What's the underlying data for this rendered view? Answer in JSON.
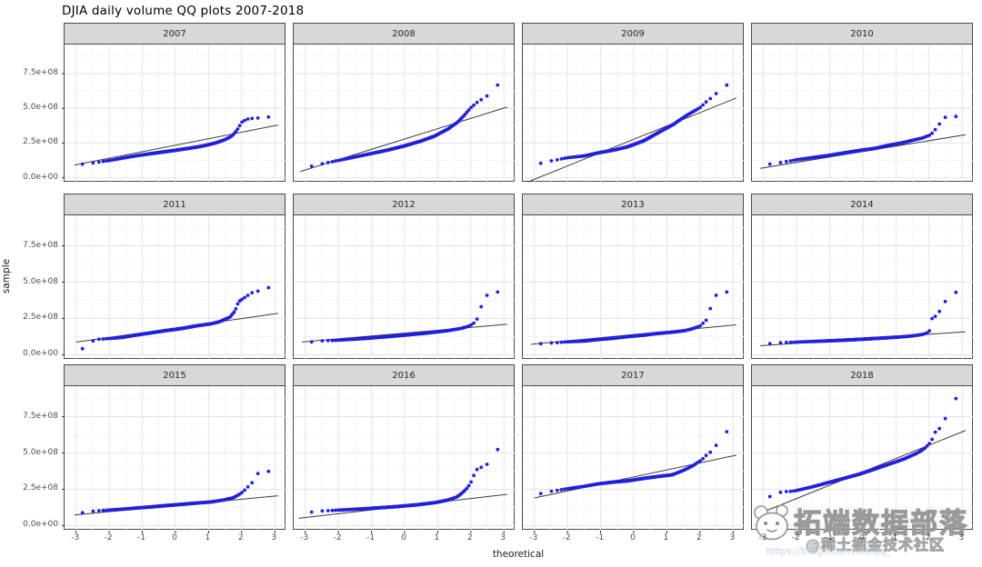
{
  "figure": {
    "title": "DJIA daily volume QQ plots 2007-2018",
    "xlabel": "theoretical",
    "ylabel": "sample"
  },
  "axes": {
    "y_ticks": [
      {
        "label": "0.0e+00",
        "value_e8": 0
      },
      {
        "label": "2.5e+08",
        "value_e8": 2.5
      },
      {
        "label": "5.0e+08",
        "value_e8": 5.0
      },
      {
        "label": "7.5e+08",
        "value_e8": 7.5
      }
    ],
    "x_ticks": [
      {
        "label": "-3",
        "value": -3
      },
      {
        "label": "-2",
        "value": -2
      },
      {
        "label": "-1",
        "value": -1
      },
      {
        "label": "0",
        "value": 0
      },
      {
        "label": "1",
        "value": 1
      },
      {
        "label": "2",
        "value": 2
      },
      {
        "label": "3",
        "value": 3
      }
    ],
    "x_domain": [
      -3.35,
      3.35
    ],
    "y_domain_e8": [
      -0.35,
      9.6
    ],
    "grid": true,
    "x_minor_step": 0.5,
    "y_minor_e8": [
      1.25,
      3.75,
      6.25,
      8.75
    ]
  },
  "colors": {
    "point": "#2121dd",
    "ref_line": "#3c3c3c",
    "strip_bg": "#d8d8d8",
    "panel_border": "#4a4a4a",
    "grid_major": "#e4e4e4",
    "grid_minor": "#f2f2f2",
    "axis_text": "#4d4d4d"
  },
  "chart_data": {
    "type": "scatter",
    "subtype": "qq-plot-facet-grid",
    "facet_layout": {
      "rows": 3,
      "cols": 4
    },
    "title": "DJIA daily volume QQ plots 2007-2018",
    "xlabel": "theoretical",
    "ylabel": "sample",
    "y_unit": "1e8 shares",
    "facets": [
      {
        "year": "2007",
        "qq_curve_e8": [
          [
            -3.05,
            0.9
          ],
          [
            -2.7,
            1.02
          ],
          [
            -2.4,
            1.08
          ],
          [
            -2.2,
            1.18
          ],
          [
            -1.9,
            1.28
          ],
          [
            -1.6,
            1.42
          ],
          [
            -1.2,
            1.58
          ],
          [
            -0.8,
            1.72
          ],
          [
            -0.4,
            1.85
          ],
          [
            0.0,
            1.98
          ],
          [
            0.4,
            2.12
          ],
          [
            0.8,
            2.28
          ],
          [
            1.2,
            2.5
          ],
          [
            1.5,
            2.75
          ],
          [
            1.7,
            3.0
          ],
          [
            1.85,
            3.4
          ],
          [
            2.0,
            4.0
          ],
          [
            2.15,
            4.22
          ],
          [
            2.4,
            4.3
          ],
          [
            2.7,
            4.32
          ],
          [
            3.05,
            4.5
          ]
        ],
        "ref_line_e8": [
          -3.05,
          0.92,
          3.1,
          3.8
        ]
      },
      {
        "year": "2008",
        "qq_curve_e8": [
          [
            -3.05,
            0.7
          ],
          [
            -2.7,
            0.9
          ],
          [
            -2.3,
            1.1
          ],
          [
            -1.9,
            1.3
          ],
          [
            -1.5,
            1.5
          ],
          [
            -1.0,
            1.75
          ],
          [
            -0.5,
            2.0
          ],
          [
            0.0,
            2.3
          ],
          [
            0.5,
            2.65
          ],
          [
            0.9,
            3.0
          ],
          [
            1.3,
            3.5
          ],
          [
            1.6,
            4.0
          ],
          [
            1.8,
            4.5
          ],
          [
            2.0,
            5.05
          ],
          [
            2.2,
            5.45
          ],
          [
            2.4,
            5.75
          ],
          [
            2.55,
            6.0
          ],
          [
            2.75,
            6.65
          ],
          [
            3.05,
            6.8
          ]
        ],
        "ref_line_e8": [
          -3.15,
          0.45,
          3.1,
          5.1
        ]
      },
      {
        "year": "2009",
        "qq_curve_e8": [
          [
            -3.05,
            0.7
          ],
          [
            -2.75,
            1.13
          ],
          [
            -2.4,
            1.25
          ],
          [
            -2.0,
            1.45
          ],
          [
            -1.5,
            1.57
          ],
          [
            -1.1,
            1.78
          ],
          [
            -0.6,
            2.0
          ],
          [
            -0.2,
            2.22
          ],
          [
            0.3,
            2.66
          ],
          [
            0.7,
            3.2
          ],
          [
            1.2,
            3.85
          ],
          [
            1.6,
            4.5
          ],
          [
            2.0,
            5.05
          ],
          [
            2.25,
            5.6
          ],
          [
            2.45,
            5.95
          ],
          [
            2.65,
            6.58
          ],
          [
            2.9,
            6.73
          ],
          [
            3.05,
            6.85
          ]
        ],
        "ref_line_e8": [
          -3.2,
          -0.3,
          3.1,
          5.75
        ]
      },
      {
        "year": "2010",
        "qq_curve_e8": [
          [
            -3.05,
            0.91
          ],
          [
            -2.7,
            1.02
          ],
          [
            -2.4,
            1.13
          ],
          [
            -2.0,
            1.3
          ],
          [
            -1.5,
            1.46
          ],
          [
            -1.0,
            1.62
          ],
          [
            -0.6,
            1.78
          ],
          [
            0.0,
            2.0
          ],
          [
            0.35,
            2.11
          ],
          [
            0.8,
            2.35
          ],
          [
            1.25,
            2.55
          ],
          [
            1.8,
            2.87
          ],
          [
            2.05,
            3.1
          ],
          [
            2.2,
            3.5
          ],
          [
            2.35,
            4.0
          ],
          [
            2.45,
            4.35
          ],
          [
            2.8,
            4.4
          ],
          [
            3.05,
            4.8
          ]
        ],
        "ref_line_e8": [
          -3.1,
          0.68,
          3.1,
          3.1
        ]
      },
      {
        "year": "2011",
        "qq_curve_e8": [
          [
            -3.05,
            0.31
          ],
          [
            -2.7,
            0.46
          ],
          [
            -2.45,
            1.04
          ],
          [
            -2.1,
            1.1
          ],
          [
            -1.6,
            1.19
          ],
          [
            -1.2,
            1.35
          ],
          [
            -0.7,
            1.52
          ],
          [
            -0.3,
            1.66
          ],
          [
            0.2,
            1.81
          ],
          [
            0.6,
            1.98
          ],
          [
            1.1,
            2.14
          ],
          [
            1.35,
            2.29
          ],
          [
            1.65,
            2.6
          ],
          [
            1.8,
            3.02
          ],
          [
            1.9,
            3.64
          ],
          [
            2.1,
            3.96
          ],
          [
            2.3,
            4.27
          ],
          [
            2.45,
            4.37
          ],
          [
            2.7,
            4.44
          ],
          [
            3.05,
            5.0
          ]
        ],
        "ref_line_e8": [
          -3.0,
          0.87,
          3.1,
          2.85
        ]
      },
      {
        "year": "2012",
        "qq_curve_e8": [
          [
            -3.05,
            0.79
          ],
          [
            -2.65,
            0.94
          ],
          [
            -2.0,
            1.0
          ],
          [
            -1.1,
            1.14
          ],
          [
            -0.2,
            1.31
          ],
          [
            0.7,
            1.5
          ],
          [
            1.3,
            1.66
          ],
          [
            1.7,
            1.81
          ],
          [
            1.95,
            1.98
          ],
          [
            2.1,
            2.19
          ],
          [
            2.2,
            2.5
          ],
          [
            2.4,
            3.96
          ],
          [
            2.6,
            4.27
          ],
          [
            3.05,
            4.37
          ]
        ],
        "ref_line_e8": [
          -3.1,
          0.88,
          3.1,
          2.1
        ]
      },
      {
        "year": "2013",
        "qq_curve_e8": [
          [
            -3.05,
            0.56
          ],
          [
            -2.78,
            0.79
          ],
          [
            -2.4,
            0.82
          ],
          [
            -2.0,
            0.89
          ],
          [
            -1.5,
            0.94
          ],
          [
            -1.1,
            1.04
          ],
          [
            -0.6,
            1.14
          ],
          [
            -0.2,
            1.25
          ],
          [
            0.3,
            1.35
          ],
          [
            0.7,
            1.46
          ],
          [
            1.2,
            1.56
          ],
          [
            1.55,
            1.66
          ],
          [
            1.8,
            1.81
          ],
          [
            2.0,
            1.98
          ],
          [
            2.1,
            2.19
          ],
          [
            2.2,
            2.4
          ],
          [
            2.25,
            2.71
          ],
          [
            2.4,
            3.85
          ],
          [
            2.55,
            4.27
          ],
          [
            3.05,
            4.37
          ]
        ],
        "ref_line_e8": [
          -3.1,
          0.72,
          3.1,
          2.06
        ]
      },
      {
        "year": "2014",
        "qq_curve_e8": [
          [
            -3.05,
            0.7
          ],
          [
            -2.7,
            0.8
          ],
          [
            -2.3,
            0.85
          ],
          [
            -1.8,
            0.89
          ],
          [
            -1.2,
            0.94
          ],
          [
            -0.6,
            1.0
          ],
          [
            0.0,
            1.07
          ],
          [
            0.6,
            1.15
          ],
          [
            1.1,
            1.22
          ],
          [
            1.5,
            1.3
          ],
          [
            1.8,
            1.4
          ],
          [
            2.0,
            1.55
          ],
          [
            2.1,
            2.6
          ],
          [
            2.25,
            2.68
          ],
          [
            2.45,
            3.65
          ],
          [
            2.6,
            3.7
          ],
          [
            2.75,
            3.72
          ],
          [
            3.05,
            6.6
          ]
        ],
        "ref_line_e8": [
          -3.1,
          0.62,
          3.1,
          1.58
        ]
      },
      {
        "year": "2015",
        "qq_curve_e8": [
          [
            -3.03,
            0.8
          ],
          [
            -2.53,
            0.99
          ],
          [
            -2.08,
            1.06
          ],
          [
            -1.63,
            1.12
          ],
          [
            -1.17,
            1.21
          ],
          [
            -0.72,
            1.29
          ],
          [
            -0.27,
            1.38
          ],
          [
            0.18,
            1.46
          ],
          [
            0.64,
            1.55
          ],
          [
            1.09,
            1.63
          ],
          [
            1.45,
            1.76
          ],
          [
            1.73,
            1.91
          ],
          [
            1.91,
            2.12
          ],
          [
            2.04,
            2.33
          ],
          [
            2.18,
            2.65
          ],
          [
            2.32,
            2.97
          ],
          [
            2.49,
            3.6
          ],
          [
            2.68,
            3.67
          ],
          [
            3.01,
            3.82
          ]
        ],
        "ref_line_e8": [
          -3.05,
          0.73,
          3.1,
          2.05
        ]
      },
      {
        "year": "2016",
        "qq_curve_e8": [
          [
            -3.05,
            0.85
          ],
          [
            -2.65,
            0.99
          ],
          [
            -2.02,
            1.06
          ],
          [
            -1.12,
            1.17
          ],
          [
            -0.22,
            1.31
          ],
          [
            0.41,
            1.44
          ],
          [
            0.95,
            1.59
          ],
          [
            1.31,
            1.76
          ],
          [
            1.58,
            1.97
          ],
          [
            1.76,
            2.29
          ],
          [
            1.9,
            2.61
          ],
          [
            2.03,
            3.08
          ],
          [
            2.15,
            3.82
          ],
          [
            2.3,
            4.0
          ],
          [
            2.45,
            4.14
          ],
          [
            2.6,
            4.46
          ],
          [
            3.0,
            5.94
          ]
        ],
        "ref_line_e8": [
          -3.2,
          0.5,
          3.1,
          2.15
        ]
      },
      {
        "year": "2017",
        "qq_curve_e8": [
          [
            -3.05,
            1.53
          ],
          [
            -2.8,
            2.23
          ],
          [
            -2.4,
            2.4
          ],
          [
            -1.97,
            2.55
          ],
          [
            -1.5,
            2.7
          ],
          [
            -1.08,
            2.87
          ],
          [
            -0.6,
            3.0
          ],
          [
            -0.18,
            3.08
          ],
          [
            0.3,
            3.25
          ],
          [
            0.8,
            3.4
          ],
          [
            1.17,
            3.5
          ],
          [
            1.5,
            3.8
          ],
          [
            1.8,
            4.14
          ],
          [
            2.07,
            4.56
          ],
          [
            2.25,
            4.98
          ],
          [
            2.43,
            5.19
          ],
          [
            2.61,
            6.26
          ],
          [
            2.92,
            6.58
          ]
        ],
        "ref_line_e8": [
          -3.0,
          1.9,
          3.1,
          4.85
        ]
      },
      {
        "year": "2018",
        "qq_curve_e8": [
          [
            -3.05,
            1.95
          ],
          [
            -2.73,
            2.01
          ],
          [
            -2.45,
            2.33
          ],
          [
            -2.13,
            2.36
          ],
          [
            -1.95,
            2.44
          ],
          [
            -1.49,
            2.69
          ],
          [
            -1.03,
            2.97
          ],
          [
            -0.57,
            3.25
          ],
          [
            -0.11,
            3.54
          ],
          [
            0.34,
            3.88
          ],
          [
            0.8,
            4.24
          ],
          [
            1.26,
            4.6
          ],
          [
            1.63,
            4.98
          ],
          [
            1.86,
            5.3
          ],
          [
            2.0,
            5.62
          ],
          [
            2.09,
            5.94
          ],
          [
            2.2,
            6.5
          ],
          [
            2.35,
            6.75
          ],
          [
            2.5,
            7.43
          ],
          [
            2.64,
            7.64
          ],
          [
            2.73,
            8.6
          ],
          [
            3.05,
            9.2
          ]
        ],
        "ref_line_e8": [
          -3.05,
          0.9,
          3.1,
          6.55
        ]
      }
    ]
  },
  "watermark": {
    "brand": "拓端数据部落",
    "community": "@稀土掘金技术社区",
    "url": "https://blog.csdn.net/qq_"
  }
}
